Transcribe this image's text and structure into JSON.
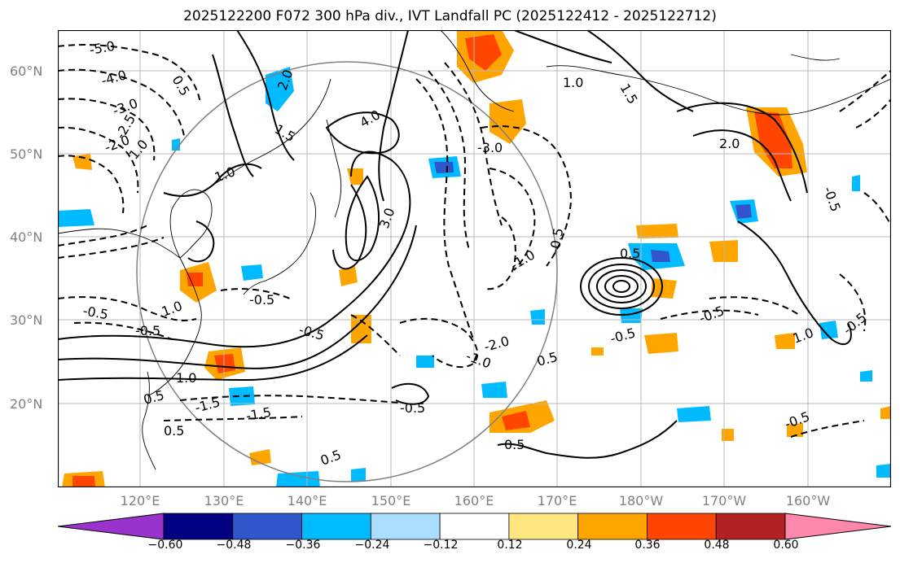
{
  "title": "2025122200 F072 300 hPa div., IVT Landfall PC (2025122412 - 2025122712)",
  "lat_labels": [
    "60°N",
    "50°N",
    "40°N",
    "30°N",
    "20°N"
  ],
  "lon_labels": [
    "120°E",
    "130°E",
    "140°E",
    "150°E",
    "160°E",
    "170°E",
    "180°W",
    "170°W",
    "160°W"
  ],
  "colorbar": {
    "ticks": [
      "−0.60",
      "−0.48",
      "−0.36",
      "−0.24",
      "−0.12",
      "0.12",
      "0.24",
      "0.36",
      "0.48",
      "0.60"
    ],
    "colors": [
      "#9933cc",
      "#000080",
      "#3355cc",
      "#00bbff",
      "#aaddff",
      "#ffffff",
      "#ffe680",
      "#ffa500",
      "#ff4500",
      "#b22222",
      "#ff88aa"
    ]
  },
  "contour_labels": [
    "-5.0",
    "-4.0",
    "-3.0",
    "-2.0",
    "-2.5",
    "1.0",
    "0.5",
    "2.0",
    "1.5",
    "4.0",
    "3.0",
    "-3.0",
    "1.0",
    "2.0",
    "1.5",
    "1.0",
    "-1.0",
    "-0.5",
    "0.5",
    "-0.5",
    "-0.5",
    "1.0",
    "-0.5",
    "-1.0",
    "0.5",
    "1.0",
    "-1.5",
    "-0.5",
    "0.5",
    "0.5",
    "-1.5",
    "-2.0",
    "-0.5",
    "-0.5",
    "-0.5",
    "-0.5",
    "1.0",
    "0.5",
    "-0.5",
    "0.5",
    "-0.5"
  ]
}
